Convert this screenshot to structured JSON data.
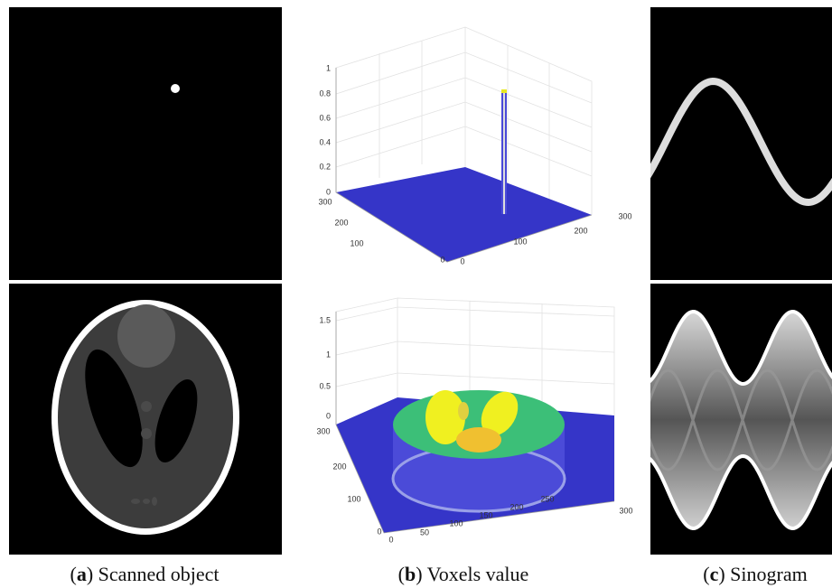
{
  "panels": [
    {
      "caption": {
        "open": "(",
        "label": "a",
        "text": ") Scanned object"
      }
    },
    {
      "caption": {
        "open": "(",
        "label": "b",
        "text": ") Voxels value"
      },
      "top_plot": {
        "z_ticks": [
          "1",
          "0.8",
          "0.6",
          "0.4",
          "0.2",
          "0"
        ],
        "y_ticks": [
          "300",
          "200",
          "100",
          "0"
        ],
        "x_ticks": [
          "0",
          "100",
          "200",
          "300"
        ]
      },
      "bottom_plot": {
        "z_ticks": [
          "1.5",
          "1",
          "0.5",
          "0"
        ],
        "y_ticks": [
          "300",
          "200",
          "100",
          "0"
        ],
        "x_ticks": [
          "0",
          "50",
          "100",
          "150",
          "200",
          "250",
          "300"
        ]
      }
    },
    {
      "caption": {
        "open": "(",
        "label": "c",
        "text": ") Sinogram"
      }
    }
  ]
}
